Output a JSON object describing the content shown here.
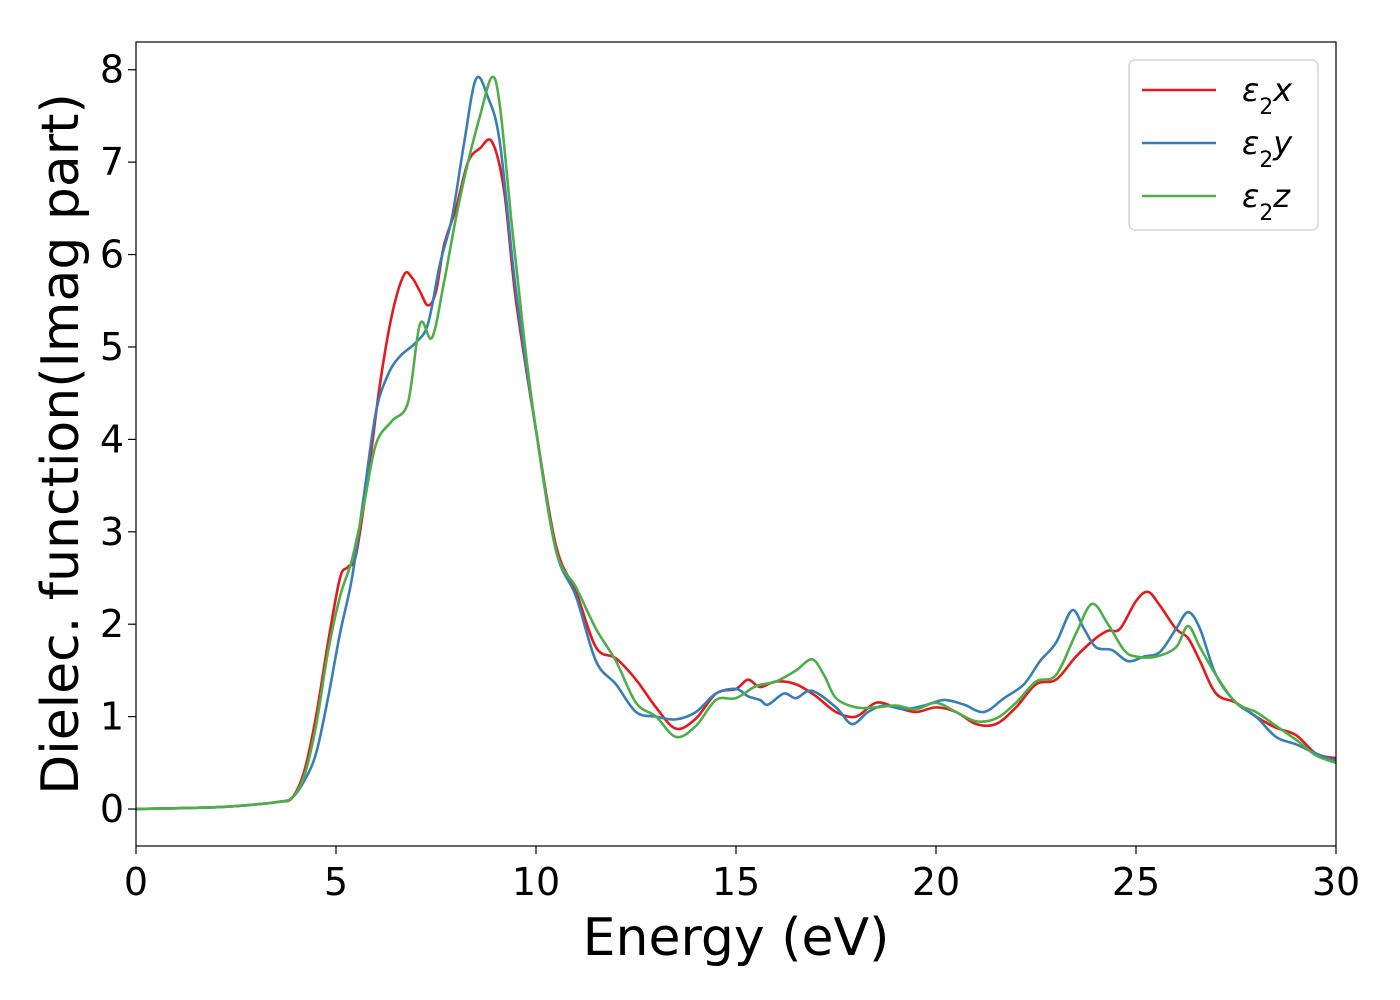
{
  "chart_data": {
    "type": "line",
    "title": "",
    "xlabel": "Energy (eV)",
    "ylabel": "Dielec. function(Imag part)",
    "xlim": [
      0,
      30
    ],
    "ylim": [
      -0.4,
      8.3
    ],
    "xticks": [
      0,
      5,
      10,
      15,
      20,
      25,
      30
    ],
    "yticks": [
      0,
      1,
      2,
      3,
      4,
      5,
      6,
      7,
      8
    ],
    "grid": false,
    "legend_position": "top-right",
    "series": [
      {
        "name": "x",
        "legend_prefix": "ε",
        "legend_sub": "2",
        "color": "#e41a1c",
        "points": [
          [
            0,
            0
          ],
          [
            2,
            0.02
          ],
          [
            3,
            0.05
          ],
          [
            3.6,
            0.08
          ],
          [
            3.9,
            0.12
          ],
          [
            4.2,
            0.4
          ],
          [
            4.5,
            1.0
          ],
          [
            4.8,
            1.8
          ],
          [
            5.1,
            2.5
          ],
          [
            5.3,
            2.62
          ],
          [
            5.5,
            2.75
          ],
          [
            5.8,
            3.6
          ],
          [
            6.1,
            4.6
          ],
          [
            6.4,
            5.35
          ],
          [
            6.7,
            5.78
          ],
          [
            6.9,
            5.75
          ],
          [
            7.1,
            5.6
          ],
          [
            7.3,
            5.45
          ],
          [
            7.5,
            5.6
          ],
          [
            7.7,
            6.1
          ],
          [
            8.0,
            6.5
          ],
          [
            8.3,
            7.0
          ],
          [
            8.6,
            7.15
          ],
          [
            8.9,
            7.22
          ],
          [
            9.2,
            6.7
          ],
          [
            9.5,
            5.5
          ],
          [
            10.0,
            4.1
          ],
          [
            10.5,
            2.85
          ],
          [
            11.0,
            2.35
          ],
          [
            11.5,
            1.75
          ],
          [
            12.0,
            1.63
          ],
          [
            12.5,
            1.4
          ],
          [
            13.0,
            1.1
          ],
          [
            13.5,
            0.87
          ],
          [
            14.0,
            0.98
          ],
          [
            14.5,
            1.25
          ],
          [
            15.0,
            1.3
          ],
          [
            15.3,
            1.4
          ],
          [
            15.6,
            1.32
          ],
          [
            16.0,
            1.38
          ],
          [
            16.5,
            1.35
          ],
          [
            17.0,
            1.22
          ],
          [
            17.5,
            1.05
          ],
          [
            18.0,
            1.0
          ],
          [
            18.5,
            1.15
          ],
          [
            19.0,
            1.1
          ],
          [
            19.5,
            1.05
          ],
          [
            20.0,
            1.1
          ],
          [
            20.5,
            1.05
          ],
          [
            21.0,
            0.92
          ],
          [
            21.5,
            0.92
          ],
          [
            22.0,
            1.1
          ],
          [
            22.5,
            1.35
          ],
          [
            23.0,
            1.4
          ],
          [
            23.5,
            1.65
          ],
          [
            24.0,
            1.85
          ],
          [
            24.3,
            1.93
          ],
          [
            24.6,
            1.95
          ],
          [
            25.0,
            2.25
          ],
          [
            25.3,
            2.35
          ],
          [
            25.6,
            2.2
          ],
          [
            26.0,
            1.95
          ],
          [
            26.3,
            1.85
          ],
          [
            26.6,
            1.6
          ],
          [
            27.0,
            1.25
          ],
          [
            27.5,
            1.15
          ],
          [
            28.0,
            1.0
          ],
          [
            28.5,
            0.88
          ],
          [
            29.0,
            0.8
          ],
          [
            29.5,
            0.6
          ],
          [
            30,
            0.55
          ]
        ]
      },
      {
        "name": "y",
        "legend_prefix": "ε",
        "legend_sub": "2",
        "color": "#377eb8",
        "points": [
          [
            0,
            0
          ],
          [
            2,
            0.02
          ],
          [
            3,
            0.05
          ],
          [
            3.6,
            0.08
          ],
          [
            3.9,
            0.12
          ],
          [
            4.2,
            0.3
          ],
          [
            4.5,
            0.6
          ],
          [
            4.8,
            1.2
          ],
          [
            5.1,
            1.9
          ],
          [
            5.4,
            2.5
          ],
          [
            5.7,
            3.4
          ],
          [
            6.0,
            4.3
          ],
          [
            6.3,
            4.7
          ],
          [
            6.6,
            4.9
          ],
          [
            7.0,
            5.05
          ],
          [
            7.3,
            5.25
          ],
          [
            7.6,
            5.9
          ],
          [
            7.9,
            6.4
          ],
          [
            8.2,
            7.2
          ],
          [
            8.5,
            7.9
          ],
          [
            8.8,
            7.7
          ],
          [
            9.1,
            7.2
          ],
          [
            9.5,
            5.6
          ],
          [
            10.0,
            4.1
          ],
          [
            10.5,
            2.8
          ],
          [
            11.0,
            2.3
          ],
          [
            11.5,
            1.6
          ],
          [
            12.0,
            1.35
          ],
          [
            12.5,
            1.05
          ],
          [
            13.0,
            1.0
          ],
          [
            13.5,
            0.97
          ],
          [
            14.0,
            1.05
          ],
          [
            14.5,
            1.25
          ],
          [
            15.0,
            1.3
          ],
          [
            15.3,
            1.22
          ],
          [
            15.6,
            1.18
          ],
          [
            15.8,
            1.13
          ],
          [
            16.2,
            1.25
          ],
          [
            16.5,
            1.2
          ],
          [
            16.9,
            1.28
          ],
          [
            17.5,
            1.1
          ],
          [
            17.9,
            0.92
          ],
          [
            18.3,
            1.05
          ],
          [
            18.7,
            1.12
          ],
          [
            19.2,
            1.08
          ],
          [
            19.7,
            1.12
          ],
          [
            20.2,
            1.18
          ],
          [
            20.7,
            1.13
          ],
          [
            21.2,
            1.05
          ],
          [
            21.7,
            1.2
          ],
          [
            22.2,
            1.35
          ],
          [
            22.6,
            1.6
          ],
          [
            23.0,
            1.8
          ],
          [
            23.4,
            2.15
          ],
          [
            23.7,
            1.95
          ],
          [
            24.0,
            1.75
          ],
          [
            24.4,
            1.72
          ],
          [
            24.8,
            1.6
          ],
          [
            25.2,
            1.65
          ],
          [
            25.6,
            1.7
          ],
          [
            26.0,
            1.95
          ],
          [
            26.3,
            2.13
          ],
          [
            26.6,
            1.95
          ],
          [
            27.0,
            1.45
          ],
          [
            27.5,
            1.15
          ],
          [
            28.0,
            1.0
          ],
          [
            28.5,
            0.78
          ],
          [
            29.0,
            0.7
          ],
          [
            29.5,
            0.6
          ],
          [
            30,
            0.52
          ]
        ]
      },
      {
        "name": "z",
        "legend_prefix": "ε",
        "legend_sub": "2",
        "color": "#4daf4a",
        "points": [
          [
            0,
            0
          ],
          [
            2,
            0.02
          ],
          [
            3,
            0.05
          ],
          [
            3.6,
            0.08
          ],
          [
            3.9,
            0.12
          ],
          [
            4.2,
            0.35
          ],
          [
            4.5,
            0.9
          ],
          [
            4.8,
            1.7
          ],
          [
            5.1,
            2.3
          ],
          [
            5.4,
            2.7
          ],
          [
            5.7,
            3.3
          ],
          [
            6.0,
            3.95
          ],
          [
            6.4,
            4.2
          ],
          [
            6.8,
            4.4
          ],
          [
            7.1,
            5.25
          ],
          [
            7.4,
            5.1
          ],
          [
            7.7,
            5.7
          ],
          [
            8.0,
            6.4
          ],
          [
            8.3,
            7.0
          ],
          [
            8.6,
            7.5
          ],
          [
            8.9,
            7.92
          ],
          [
            9.1,
            7.6
          ],
          [
            9.4,
            6.3
          ],
          [
            9.7,
            5.1
          ],
          [
            10.0,
            4.1
          ],
          [
            10.5,
            2.8
          ],
          [
            11.0,
            2.4
          ],
          [
            11.5,
            1.95
          ],
          [
            12.0,
            1.6
          ],
          [
            12.5,
            1.15
          ],
          [
            13.0,
            1.0
          ],
          [
            13.5,
            0.78
          ],
          [
            14.0,
            0.9
          ],
          [
            14.5,
            1.18
          ],
          [
            15.0,
            1.2
          ],
          [
            15.5,
            1.33
          ],
          [
            16.0,
            1.38
          ],
          [
            16.5,
            1.5
          ],
          [
            16.9,
            1.62
          ],
          [
            17.2,
            1.45
          ],
          [
            17.5,
            1.2
          ],
          [
            18.0,
            1.1
          ],
          [
            18.5,
            1.1
          ],
          [
            19.0,
            1.12
          ],
          [
            19.5,
            1.08
          ],
          [
            20.0,
            1.15
          ],
          [
            20.5,
            1.05
          ],
          [
            21.0,
            0.95
          ],
          [
            21.5,
            0.98
          ],
          [
            22.0,
            1.15
          ],
          [
            22.5,
            1.38
          ],
          [
            23.0,
            1.45
          ],
          [
            23.5,
            1.9
          ],
          [
            23.9,
            2.22
          ],
          [
            24.3,
            2.0
          ],
          [
            24.7,
            1.72
          ],
          [
            25.0,
            1.65
          ],
          [
            25.5,
            1.65
          ],
          [
            26.0,
            1.75
          ],
          [
            26.3,
            1.98
          ],
          [
            26.6,
            1.75
          ],
          [
            27.0,
            1.45
          ],
          [
            27.5,
            1.15
          ],
          [
            28.0,
            1.05
          ],
          [
            28.5,
            0.9
          ],
          [
            29.0,
            0.75
          ],
          [
            29.5,
            0.58
          ],
          [
            30,
            0.5
          ]
        ]
      }
    ]
  }
}
